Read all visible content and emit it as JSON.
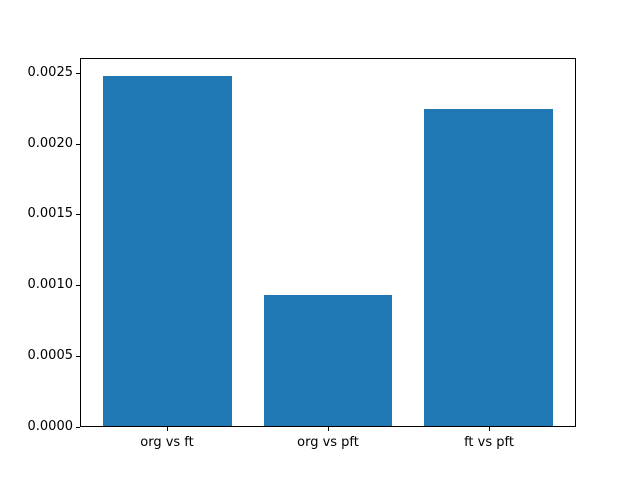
{
  "chart_data": {
    "type": "bar",
    "title": "",
    "xlabel": "",
    "ylabel": "",
    "categories": [
      "org vs ft",
      "org vs pft",
      "ft vs pft"
    ],
    "values": [
      0.00248,
      0.00093,
      0.00225
    ],
    "bar_color": "#1f77b4",
    "bar_width": 0.8,
    "xlim": [
      -0.54,
      2.54
    ],
    "ylim": [
      0,
      0.002604
    ],
    "yticks": [
      0.0,
      0.0005,
      0.001,
      0.0015,
      0.002,
      0.0025
    ],
    "ytick_labels": [
      "0.0000",
      "0.0005",
      "0.0010",
      "0.0015",
      "0.0020",
      "0.0025"
    ],
    "grid": false,
    "legend": "none",
    "spine_color": "#000000",
    "background_color": "#ffffff"
  }
}
